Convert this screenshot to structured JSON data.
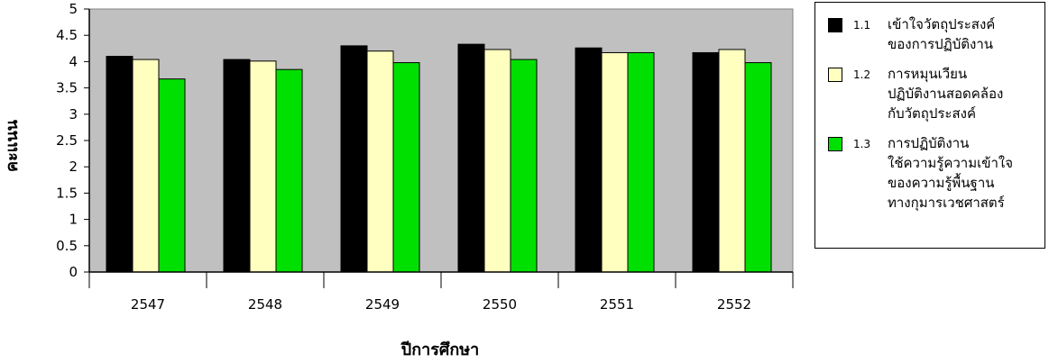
{
  "chart_data": {
    "type": "bar",
    "title": "",
    "xlabel": "ปีการศึกษา",
    "ylabel": "คะแนน",
    "ylim": [
      0,
      5
    ],
    "yticks": [
      "0",
      "0.5",
      "1",
      "1.5",
      "2",
      "2.5",
      "3",
      "3.5",
      "4",
      "4.5",
      "5"
    ],
    "grid": false,
    "legend_position": "right",
    "categories": [
      "2547",
      "2548",
      "2549",
      "2550",
      "2551",
      "2552"
    ],
    "series": [
      {
        "name": "เข้าใจวัตถุประสงค์ของการปฏิบัติงาน",
        "number": "1.1",
        "color": "#000000",
        "values": [
          4.1,
          4.04,
          4.3,
          4.33,
          4.26,
          4.17
        ]
      },
      {
        "name": "การหมุนเวียนปฏิบัติงานสอดคล้องกับวัตถุประสงค์",
        "number": "1.2",
        "color": "#FFFFC0",
        "values": [
          4.04,
          4.01,
          4.2,
          4.23,
          4.17,
          4.23
        ]
      },
      {
        "name": "การปฏิบัติงานใช้ความรู้ความเข้าใจของความรู้พื้นฐานทางกุมารเวชศาสตร์",
        "number": "1.3",
        "color": "#00E000",
        "values": [
          3.67,
          3.85,
          3.98,
          4.04,
          4.17,
          3.98
        ]
      }
    ]
  }
}
